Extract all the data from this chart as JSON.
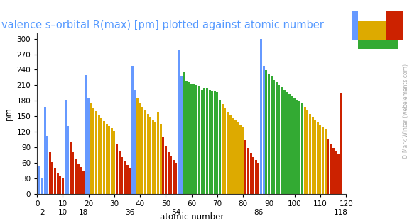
{
  "title": "valence s–orbital R(max) [pm] plotted against atomic number",
  "ylabel": "pm",
  "xlabel": "atomic number",
  "xlim": [
    0,
    120
  ],
  "ylim": [
    0,
    310
  ],
  "yticks": [
    0,
    30,
    60,
    90,
    120,
    150,
    180,
    210,
    240,
    270,
    300
  ],
  "xticks_upper": [
    0,
    10,
    20,
    30,
    40,
    50,
    60,
    70,
    80,
    90,
    100,
    110,
    120
  ],
  "xticks_lower": [
    2,
    10,
    18,
    36,
    54,
    86,
    118
  ],
  "title_color": "#5599ff",
  "title_fontsize": 10.5,
  "bar_width": 0.85,
  "colors": {
    "s": "#6699ff",
    "p": "#cc2200",
    "d": "#ddaa00",
    "f": "#33aa33"
  },
  "data": [
    [
      1,
      52.9,
      "s"
    ],
    [
      2,
      31.1,
      "s"
    ],
    [
      3,
      167.6,
      "s"
    ],
    [
      4,
      111.9,
      "s"
    ],
    [
      5,
      80.6,
      "p"
    ],
    [
      6,
      62.0,
      "p"
    ],
    [
      7,
      50.0,
      "p"
    ],
    [
      8,
      41.5,
      "p"
    ],
    [
      9,
      35.4,
      "p"
    ],
    [
      10,
      30.5,
      "p"
    ],
    [
      11,
      181.7,
      "s"
    ],
    [
      12,
      130.8,
      "s"
    ],
    [
      13,
      100.3,
      "p"
    ],
    [
      14,
      81.1,
      "p"
    ],
    [
      15,
      68.0,
      "p"
    ],
    [
      16,
      58.5,
      "p"
    ],
    [
      17,
      51.4,
      "p"
    ],
    [
      18,
      45.6,
      "p"
    ],
    [
      19,
      230.0,
      "s"
    ],
    [
      20,
      186.5,
      "s"
    ],
    [
      21,
      175.6,
      "d"
    ],
    [
      22,
      167.0,
      "d"
    ],
    [
      23,
      159.7,
      "d"
    ],
    [
      24,
      152.8,
      "d"
    ],
    [
      25,
      146.8,
      "d"
    ],
    [
      26,
      140.9,
      "d"
    ],
    [
      27,
      135.9,
      "d"
    ],
    [
      28,
      131.2,
      "d"
    ],
    [
      29,
      126.9,
      "d"
    ],
    [
      30,
      122.4,
      "d"
    ],
    [
      31,
      97.7,
      "p"
    ],
    [
      32,
      81.8,
      "p"
    ],
    [
      33,
      70.8,
      "p"
    ],
    [
      34,
      62.6,
      "p"
    ],
    [
      35,
      56.3,
      "p"
    ],
    [
      36,
      51.1,
      "p"
    ],
    [
      37,
      247.7,
      "s"
    ],
    [
      38,
      200.6,
      "s"
    ],
    [
      39,
      185.0,
      "d"
    ],
    [
      40,
      176.2,
      "d"
    ],
    [
      41,
      167.9,
      "d"
    ],
    [
      42,
      160.8,
      "d"
    ],
    [
      43,
      154.0,
      "d"
    ],
    [
      44,
      148.7,
      "d"
    ],
    [
      45,
      143.8,
      "d"
    ],
    [
      46,
      138.1,
      "d"
    ],
    [
      47,
      159.0,
      "d"
    ],
    [
      48,
      135.2,
      "d"
    ],
    [
      49,
      108.9,
      "p"
    ],
    [
      50,
      92.6,
      "p"
    ],
    [
      51,
      81.3,
      "p"
    ],
    [
      52,
      72.7,
      "p"
    ],
    [
      53,
      66.0,
      "p"
    ],
    [
      54,
      60.5,
      "p"
    ],
    [
      55,
      278.3,
      "s"
    ],
    [
      56,
      228.8,
      "s"
    ],
    [
      57,
      236.2,
      "f"
    ],
    [
      58,
      218.0,
      "f"
    ],
    [
      59,
      215.9,
      "f"
    ],
    [
      60,
      213.9,
      "f"
    ],
    [
      61,
      212.0,
      "f"
    ],
    [
      62,
      210.1,
      "f"
    ],
    [
      63,
      208.3,
      "f"
    ],
    [
      64,
      200.8,
      "f"
    ],
    [
      65,
      204.8,
      "f"
    ],
    [
      66,
      203.2,
      "f"
    ],
    [
      67,
      201.5,
      "f"
    ],
    [
      68,
      199.9,
      "f"
    ],
    [
      69,
      198.3,
      "f"
    ],
    [
      70,
      196.8,
      "f"
    ],
    [
      71,
      182.0,
      "f"
    ],
    [
      72,
      173.2,
      "d"
    ],
    [
      73,
      165.3,
      "d"
    ],
    [
      74,
      158.8,
      "d"
    ],
    [
      75,
      152.9,
      "d"
    ],
    [
      76,
      147.5,
      "d"
    ],
    [
      77,
      142.6,
      "d"
    ],
    [
      78,
      137.7,
      "d"
    ],
    [
      79,
      133.5,
      "d"
    ],
    [
      80,
      128.2,
      "d"
    ],
    [
      81,
      103.9,
      "p"
    ],
    [
      82,
      89.1,
      "p"
    ],
    [
      83,
      79.2,
      "p"
    ],
    [
      84,
      71.7,
      "p"
    ],
    [
      85,
      65.8,
      "p"
    ],
    [
      86,
      60.5,
      "p"
    ],
    [
      87,
      300.0,
      "s"
    ],
    [
      88,
      248.0,
      "s"
    ],
    [
      89,
      239.2,
      "f"
    ],
    [
      90,
      232.5,
      "f"
    ],
    [
      91,
      226.5,
      "f"
    ],
    [
      92,
      220.8,
      "f"
    ],
    [
      93,
      215.5,
      "f"
    ],
    [
      94,
      210.5,
      "f"
    ],
    [
      95,
      205.8,
      "f"
    ],
    [
      96,
      201.4,
      "f"
    ],
    [
      97,
      197.2,
      "f"
    ],
    [
      98,
      193.2,
      "f"
    ],
    [
      99,
      189.5,
      "f"
    ],
    [
      100,
      185.9,
      "f"
    ],
    [
      101,
      182.5,
      "f"
    ],
    [
      102,
      179.3,
      "f"
    ],
    [
      103,
      176.2,
      "f"
    ],
    [
      104,
      168.0,
      "d"
    ],
    [
      105,
      161.0,
      "d"
    ],
    [
      106,
      154.5,
      "d"
    ],
    [
      107,
      148.5,
      "d"
    ],
    [
      108,
      143.0,
      "d"
    ],
    [
      109,
      138.0,
      "d"
    ],
    [
      110,
      133.5,
      "d"
    ],
    [
      111,
      129.2,
      "d"
    ],
    [
      112,
      125.2,
      "d"
    ],
    [
      113,
      107.0,
      "p"
    ],
    [
      114,
      97.0,
      "p"
    ],
    [
      115,
      89.0,
      "p"
    ],
    [
      116,
      82.0,
      "p"
    ],
    [
      117,
      76.0,
      "p"
    ],
    [
      118,
      196.0,
      "p"
    ]
  ],
  "legend_layout": {
    "row1_s": [
      0,
      1
    ],
    "row1_p": [
      12,
      13,
      14,
      15,
      16,
      17
    ],
    "row2_s": [
      0,
      1
    ],
    "row2_d": [
      2,
      3,
      4,
      5,
      6,
      7,
      8,
      9,
      10,
      11
    ],
    "row2_p": [
      12,
      13,
      14,
      15,
      16,
      17
    ],
    "row3_s": [
      0,
      1
    ],
    "row3_d": [
      2,
      3,
      4,
      5,
      6,
      7,
      8,
      9,
      10,
      11
    ],
    "row3_p": [
      12,
      13,
      14,
      15,
      16,
      17
    ],
    "row4_f": [
      2,
      3,
      4,
      5,
      6,
      7,
      8,
      9,
      10,
      11,
      12,
      13,
      14,
      15
    ]
  }
}
